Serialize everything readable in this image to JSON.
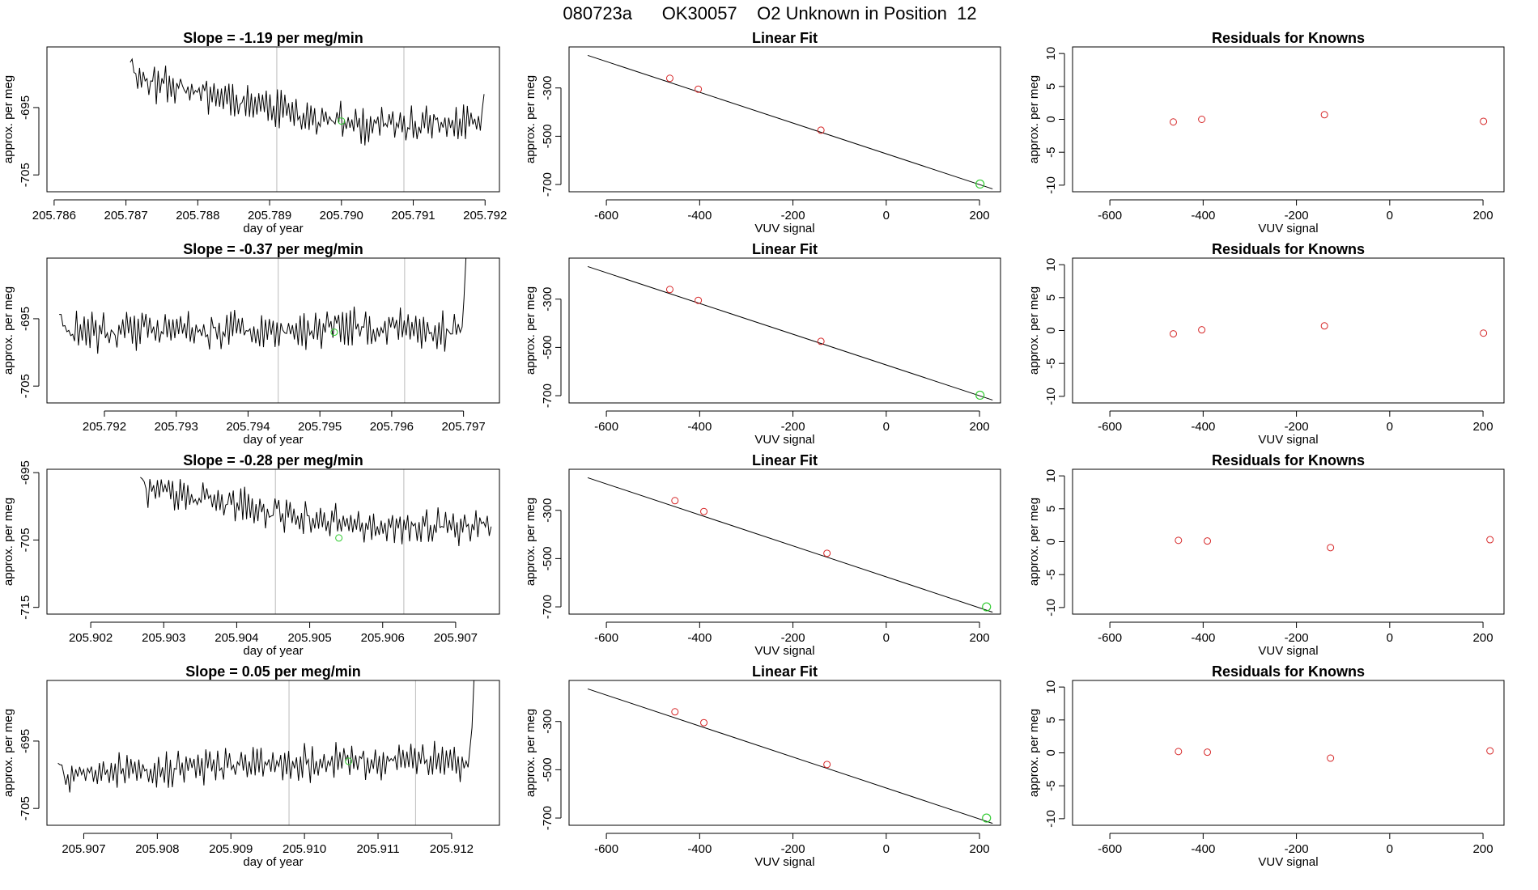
{
  "title": "080723a      OK30057    O2 Unknown in Position  12",
  "colors": {
    "trace": "#000000",
    "marker_known": "#d62728",
    "marker_unknown": "#33cc33",
    "vline": "#bbbbbb",
    "frame": "#000000"
  },
  "chart_data": [
    {
      "type": "line",
      "title": "Slope =  -1.19  per meg/min",
      "xlabel": "day of year",
      "ylabel": "approx. per meg",
      "xlim": [
        205.7859,
        205.7922
      ],
      "ylim": [
        -707.5,
        -686.0
      ],
      "xticks": [
        205.786,
        205.787,
        205.788,
        205.789,
        205.79,
        205.791,
        205.792
      ],
      "xtick_labels": [
        "205.786",
        "205.787",
        "205.788",
        "205.789",
        "205.790",
        "205.791",
        "205.792"
      ],
      "yticks": [
        -695,
        -705
      ],
      "ytick_labels": [
        "-695",
        "-705"
      ],
      "trace": {
        "x_start": 205.78706,
        "x_end": 205.79196,
        "n": 190,
        "seed": 11,
        "base_start": -690.5,
        "base_end": -697.5,
        "noise": 1.4,
        "osc": 1.4,
        "tail": [
          -693.0
        ]
      },
      "vlines": [
        205.7891,
        205.79087
      ],
      "marker": {
        "x": 205.79,
        "y": -697.0
      }
    },
    {
      "type": "line",
      "title": "Slope =  -0.37  per meg/min",
      "xlabel": "day of year",
      "ylabel": "approx. per meg",
      "xlim": [
        205.7912,
        205.7975
      ],
      "ylim": [
        -707.5,
        -686.0
      ],
      "xticks": [
        205.792,
        205.793,
        205.794,
        205.795,
        205.796,
        205.797
      ],
      "xtick_labels": [
        "205.792",
        "205.793",
        "205.794",
        "205.795",
        "205.796",
        "205.797"
      ],
      "yticks": [
        -695,
        -705
      ],
      "ytick_labels": [
        "-695",
        "-705"
      ],
      "trace": {
        "x_start": 205.79137,
        "x_end": 205.79698,
        "n": 210,
        "seed": 23,
        "base_start": -697.0,
        "base_end": -696.5,
        "noise": 1.5,
        "osc": 1.6,
        "tail": [
          -692.0,
          -686.0
        ]
      },
      "vlines": [
        205.79442,
        205.79618
      ],
      "marker": {
        "x": 205.7952,
        "y": -697.0
      }
    },
    {
      "type": "line",
      "title": "Slope =  -0.28  per meg/min",
      "xlabel": "day of year",
      "ylabel": "approx. per meg",
      "xlim": [
        205.9014,
        205.9076
      ],
      "ylim": [
        -716.0,
        -694.5
      ],
      "xticks": [
        205.902,
        205.903,
        205.904,
        205.905,
        205.906,
        205.907
      ],
      "xtick_labels": [
        "205.902",
        "205.903",
        "205.904",
        "205.905",
        "205.906",
        "205.907"
      ],
      "yticks": [
        -695,
        -705,
        -715
      ],
      "ytick_labels": [
        "-695",
        "-705",
        "-715"
      ],
      "trace": {
        "x_start": 205.90268,
        "x_end": 205.90746,
        "n": 185,
        "seed": 37,
        "base_start": -697.5,
        "base_end": -703.0,
        "noise": 1.3,
        "osc": 1.3,
        "tail": [
          -703.0
        ]
      },
      "vlines": [
        205.90453,
        205.90629
      ],
      "marker": {
        "x": 205.9054,
        "y": -704.7
      }
    },
    {
      "type": "line",
      "title": "Slope =  0.05  per meg/min",
      "xlabel": "day of year",
      "ylabel": "approx. per meg",
      "xlim": [
        205.9065,
        205.91265
      ],
      "ylim": [
        -707.5,
        -686.0
      ],
      "xticks": [
        205.907,
        205.908,
        205.909,
        205.91,
        205.911,
        205.912
      ],
      "xtick_labels": [
        "205.907",
        "205.908",
        "205.909",
        "205.910",
        "205.911",
        "205.912"
      ],
      "yticks": [
        -695,
        -705
      ],
      "ytick_labels": [
        "-695",
        "-705"
      ],
      "trace": {
        "x_start": 205.90665,
        "x_end": 205.91225,
        "n": 210,
        "seed": 53,
        "base_start": -700.0,
        "base_end": -698.0,
        "noise": 1.3,
        "osc": 1.4,
        "tail": [
          -693.0,
          -686.0
        ]
      },
      "vlines": [
        205.90979,
        205.91151
      ],
      "marker": {
        "x": 205.9106,
        "y": -698.0
      }
    },
    {
      "type": "scatter",
      "title": "Linear Fit",
      "xlabel": "VUV signal",
      "ylabel": "approx. per meg",
      "xlim": [
        -680,
        245
      ],
      "ylim": [
        -730,
        -130
      ],
      "xticks": [
        -600,
        -400,
        -200,
        0,
        200
      ],
      "xtick_labels": [
        "-600",
        "-400",
        "-200",
        "0",
        "200"
      ],
      "yticks": [
        -300,
        -500,
        -700
      ],
      "ytick_labels": [
        "-300",
        "-500",
        "-700"
      ],
      "fit_line": {
        "x": [
          -640,
          228
        ],
        "y": [
          -165,
          -718
        ]
      },
      "points": [
        {
          "x": -464,
          "y": -260
        },
        {
          "x": -403,
          "y": -305
        },
        {
          "x": -140,
          "y": -475
        }
      ],
      "unknown_point": {
        "x": 201,
        "y": -698
      }
    },
    {
      "type": "scatter",
      "title": "Linear Fit",
      "xlabel": "VUV signal",
      "ylabel": "approx. per meg",
      "xlim": [
        -680,
        245
      ],
      "ylim": [
        -730,
        -130
      ],
      "xticks": [
        -600,
        -400,
        -200,
        0,
        200
      ],
      "xtick_labels": [
        "-600",
        "-400",
        "-200",
        "0",
        "200"
      ],
      "yticks": [
        -300,
        -500,
        -700
      ],
      "ytick_labels": [
        "-300",
        "-500",
        "-700"
      ],
      "fit_line": {
        "x": [
          -640,
          228
        ],
        "y": [
          -165,
          -718
        ]
      },
      "points": [
        {
          "x": -464,
          "y": -260
        },
        {
          "x": -403,
          "y": -305
        },
        {
          "x": -140,
          "y": -475
        }
      ],
      "unknown_point": {
        "x": 201,
        "y": -698
      }
    },
    {
      "type": "scatter",
      "title": "Linear Fit",
      "xlabel": "VUV signal",
      "ylabel": "approx. per meg",
      "xlim": [
        -680,
        245
      ],
      "ylim": [
        -730,
        -130
      ],
      "xticks": [
        -600,
        -400,
        -200,
        0,
        200
      ],
      "xtick_labels": [
        "-600",
        "-400",
        "-200",
        "0",
        "200"
      ],
      "yticks": [
        -300,
        -500,
        -700
      ],
      "ytick_labels": [
        "-300",
        "-500",
        "-700"
      ],
      "fit_line": {
        "x": [
          -640,
          228
        ],
        "y": [
          -165,
          -722
        ]
      },
      "points": [
        {
          "x": -453,
          "y": -260
        },
        {
          "x": -391,
          "y": -305
        },
        {
          "x": -127,
          "y": -478
        }
      ],
      "unknown_point": {
        "x": 215,
        "y": -700
      }
    },
    {
      "type": "scatter",
      "title": "Linear Fit",
      "xlabel": "VUV signal",
      "ylabel": "approx. per meg",
      "xlim": [
        -680,
        245
      ],
      "ylim": [
        -730,
        -130
      ],
      "xticks": [
        -600,
        -400,
        -200,
        0,
        200
      ],
      "xtick_labels": [
        "-600",
        "-400",
        "-200",
        "0",
        "200"
      ],
      "yticks": [
        -300,
        -500,
        -700
      ],
      "ytick_labels": [
        "-300",
        "-500",
        "-700"
      ],
      "fit_line": {
        "x": [
          -640,
          228
        ],
        "y": [
          -165,
          -722
        ]
      },
      "points": [
        {
          "x": -453,
          "y": -260
        },
        {
          "x": -391,
          "y": -305
        },
        {
          "x": -127,
          "y": -478
        }
      ],
      "unknown_point": {
        "x": 215,
        "y": -700
      }
    },
    {
      "type": "scatter",
      "title": "Residuals for Knowns",
      "xlabel": "VUV signal",
      "ylabel": "approx. per meg",
      "xlim": [
        -680,
        245
      ],
      "ylim": [
        -11,
        11
      ],
      "xticks": [
        -600,
        -400,
        -200,
        0,
        200
      ],
      "xtick_labels": [
        "-600",
        "-400",
        "-200",
        "0",
        "200"
      ],
      "yticks": [
        10,
        5,
        0,
        -5,
        -10
      ],
      "ytick_labels": [
        "10",
        "5",
        "0",
        "-5",
        "-10"
      ],
      "points": [
        {
          "x": -464,
          "y": -0.4
        },
        {
          "x": -403,
          "y": 0.0
        },
        {
          "x": -140,
          "y": 0.7
        },
        {
          "x": 201,
          "y": -0.3
        }
      ]
    },
    {
      "type": "scatter",
      "title": "Residuals for Knowns",
      "xlabel": "VUV signal",
      "ylabel": "approx. per meg",
      "xlim": [
        -680,
        245
      ],
      "ylim": [
        -11,
        11
      ],
      "xticks": [
        -600,
        -400,
        -200,
        0,
        200
      ],
      "xtick_labels": [
        "-600",
        "-400",
        "-200",
        "0",
        "200"
      ],
      "yticks": [
        10,
        5,
        0,
        -5,
        -10
      ],
      "ytick_labels": [
        "10",
        "5",
        "0",
        "-5",
        "-10"
      ],
      "points": [
        {
          "x": -464,
          "y": -0.5
        },
        {
          "x": -403,
          "y": 0.1
        },
        {
          "x": -140,
          "y": 0.7
        },
        {
          "x": 201,
          "y": -0.4
        }
      ]
    },
    {
      "type": "scatter",
      "title": "Residuals for Knowns",
      "xlabel": "VUV signal",
      "ylabel": "approx. per meg",
      "xlim": [
        -680,
        245
      ],
      "ylim": [
        -11,
        11
      ],
      "xticks": [
        -600,
        -400,
        -200,
        0,
        200
      ],
      "xtick_labels": [
        "-600",
        "-400",
        "-200",
        "0",
        "200"
      ],
      "yticks": [
        10,
        5,
        0,
        -5,
        -10
      ],
      "ytick_labels": [
        "10",
        "5",
        "0",
        "-5",
        "-10"
      ],
      "points": [
        {
          "x": -453,
          "y": 0.2
        },
        {
          "x": -391,
          "y": 0.1
        },
        {
          "x": -127,
          "y": -0.9
        },
        {
          "x": 215,
          "y": 0.3
        }
      ]
    },
    {
      "type": "scatter",
      "title": "Residuals for Knowns",
      "xlabel": "VUV signal",
      "ylabel": "approx. per meg",
      "xlim": [
        -680,
        245
      ],
      "ylim": [
        -11,
        11
      ],
      "xticks": [
        -600,
        -400,
        -200,
        0,
        200
      ],
      "xtick_labels": [
        "-600",
        "-400",
        "-200",
        "0",
        "200"
      ],
      "yticks": [
        10,
        5,
        0,
        -5,
        -10
      ],
      "ytick_labels": [
        "10",
        "5",
        "0",
        "-5",
        "-10"
      ],
      "points": [
        {
          "x": -453,
          "y": 0.2
        },
        {
          "x": -391,
          "y": 0.1
        },
        {
          "x": -127,
          "y": -0.8
        },
        {
          "x": 215,
          "y": 0.3
        }
      ]
    }
  ]
}
